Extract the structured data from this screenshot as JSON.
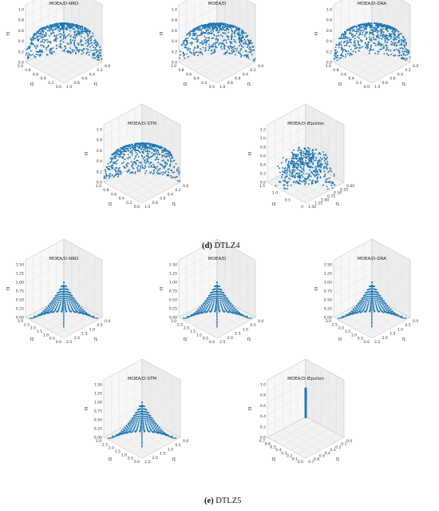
{
  "captions": {
    "d": {
      "letter": "(d)",
      "text": " DTLZ4"
    },
    "e": {
      "letter": "(e)",
      "text": " DTLZ5"
    }
  },
  "colors": {
    "points": "#1f77b4",
    "pane": "#f2f2f2",
    "grid": "#dddddd",
    "edge": "#bbbbbb",
    "ticks": "#333333"
  },
  "chart_data": [
    {
      "type": "scatter",
      "subtype": "3d-scatter",
      "group": "d",
      "problem": "DTLZ4",
      "title": "MOEA/D-NRD",
      "shape": "sphere-octant",
      "point_count": 650,
      "x_ticks": [
        "0.0",
        "0.2",
        "0.4",
        "0.6",
        "0.8",
        "1.0"
      ],
      "y_ticks": [
        "0.0",
        "0.2",
        "0.4",
        "0.6",
        "0.8",
        "1.0"
      ],
      "z_ticks": [
        "0.0",
        "0.2",
        "0.4",
        "0.6",
        "0.8",
        "1.0"
      ],
      "xlabel": "f1",
      "ylabel": "f2",
      "zlabel": "f3",
      "xlim": [
        0,
        1
      ],
      "ylim": [
        0,
        1
      ],
      "zlim": [
        0,
        1.1
      ]
    },
    {
      "type": "scatter",
      "subtype": "3d-scatter",
      "group": "d",
      "problem": "DTLZ4",
      "title": "MOEA/D",
      "shape": "sphere-octant",
      "point_count": 650,
      "x_ticks": [
        "0.0",
        "0.2",
        "0.4",
        "0.6",
        "0.8",
        "1.0"
      ],
      "y_ticks": [
        "0.0",
        "0.2",
        "0.4",
        "0.6",
        "0.8",
        "1.0"
      ],
      "z_ticks": [
        "0.0",
        "0.2",
        "0.4",
        "0.6",
        "0.8",
        "1.0"
      ],
      "xlabel": "f1",
      "ylabel": "f2",
      "zlabel": "f3",
      "xlim": [
        0,
        1
      ],
      "ylim": [
        0,
        1
      ],
      "zlim": [
        0,
        1.1
      ]
    },
    {
      "type": "scatter",
      "subtype": "3d-scatter",
      "group": "d",
      "problem": "DTLZ4",
      "title": "MOEA/D-DRA",
      "shape": "sphere-octant",
      "point_count": 650,
      "x_ticks": [
        "0.0",
        "0.2",
        "0.4",
        "0.6",
        "0.8",
        "1.0"
      ],
      "y_ticks": [
        "0.0",
        "0.2",
        "0.4",
        "0.6",
        "0.8",
        "1.0"
      ],
      "z_ticks": [
        "0.0",
        "0.2",
        "0.4",
        "0.6",
        "0.8",
        "1.0"
      ],
      "xlabel": "f1",
      "ylabel": "f2",
      "zlabel": "f3",
      "xlim": [
        0,
        1
      ],
      "ylim": [
        0,
        1
      ],
      "zlim": [
        0,
        1.1
      ]
    },
    {
      "type": "scatter",
      "subtype": "3d-scatter",
      "group": "d",
      "problem": "DTLZ4",
      "title": "MOEA/D-STM",
      "shape": "sphere-octant",
      "point_count": 650,
      "x_ticks": [
        "0.0",
        "0.2",
        "0.4",
        "0.6",
        "0.8",
        "1.0"
      ],
      "y_ticks": [
        "0.0",
        "0.2",
        "0.4",
        "0.6",
        "0.8",
        "1.0"
      ],
      "z_ticks": [
        "0.0",
        "0.2",
        "0.4",
        "0.6",
        "0.8",
        "1.0"
      ],
      "xlabel": "f1",
      "ylabel": "f2",
      "zlabel": "f3",
      "xlim": [
        0,
        1
      ],
      "ylim": [
        0,
        1
      ],
      "zlim": [
        0,
        1.1
      ]
    },
    {
      "type": "scatter",
      "subtype": "3d-scatter",
      "group": "d",
      "problem": "DTLZ4",
      "title": "MOEA/D-IEpsilon",
      "shape": "noisy-sphere-octant",
      "point_count": 500,
      "x_ticks": [
        "0.00",
        "0.25",
        "0.50",
        "0.75",
        "1.00",
        "1.25",
        "1.50"
      ],
      "y_ticks": [
        "0",
        "0.5",
        "1.0",
        "1.5"
      ],
      "z_ticks": [
        "0.0",
        "0.2",
        "0.4",
        "0.6",
        "0.8",
        "1.0",
        "1.2"
      ],
      "xlabel": "f1",
      "ylabel": "f2",
      "zlabel": "f3",
      "xlim": [
        0,
        1.5
      ],
      "ylim": [
        0,
        1.5
      ],
      "zlim": [
        0,
        1.35
      ]
    },
    {
      "type": "scatter",
      "subtype": "3d-scatter",
      "group": "e",
      "problem": "DTLZ5",
      "title": "MOEA/D-NRD",
      "shape": "fan-curves",
      "point_count": 320,
      "x_ticks": [
        "0.0",
        "0.5",
        "1.0",
        "1.5",
        "2.0",
        "2.5"
      ],
      "y_ticks": [
        "0.0",
        "0.5",
        "1.0",
        "1.5",
        "2.0",
        "2.5",
        "3.0"
      ],
      "z_ticks": [
        "0.00",
        "0.25",
        "0.50",
        "0.75",
        "1.00",
        "1.25",
        "1.50"
      ],
      "xlabel": "f1",
      "ylabel": "f2",
      "zlabel": "f3",
      "xlim": [
        0,
        2.6
      ],
      "ylim": [
        0,
        3.1
      ],
      "zlim": [
        0,
        1.6
      ]
    },
    {
      "type": "scatter",
      "subtype": "3d-scatter",
      "group": "e",
      "problem": "DTLZ5",
      "title": "MOEA/D",
      "shape": "fan-curves",
      "point_count": 320,
      "x_ticks": [
        "0.0",
        "0.5",
        "1.0",
        "1.5",
        "2.0",
        "2.5"
      ],
      "y_ticks": [
        "0.0",
        "0.5",
        "1.0",
        "1.5",
        "2.0",
        "2.5",
        "3.0"
      ],
      "z_ticks": [
        "0.00",
        "0.25",
        "0.50",
        "0.75",
        "1.00",
        "1.25",
        "1.50"
      ],
      "xlabel": "f1",
      "ylabel": "f2",
      "zlabel": "f3",
      "xlim": [
        0,
        2.6
      ],
      "ylim": [
        0,
        3.1
      ],
      "zlim": [
        0,
        1.6
      ]
    },
    {
      "type": "scatter",
      "subtype": "3d-scatter",
      "group": "e",
      "problem": "DTLZ5",
      "title": "MOEA/D-DRA",
      "shape": "fan-curves",
      "point_count": 320,
      "x_ticks": [
        "0.0",
        "0.5",
        "1.0",
        "1.5",
        "2.0",
        "2.5"
      ],
      "y_ticks": [
        "0.0",
        "0.5",
        "1.0",
        "1.5",
        "2.0",
        "2.5",
        "3.0"
      ],
      "z_ticks": [
        "0.00",
        "0.25",
        "0.50",
        "0.75",
        "1.00",
        "1.25",
        "1.50"
      ],
      "xlabel": "f1",
      "ylabel": "f2",
      "zlabel": "f3",
      "xlim": [
        0,
        2.6
      ],
      "ylim": [
        0,
        3.1
      ],
      "zlim": [
        0,
        1.6
      ]
    },
    {
      "type": "scatter",
      "subtype": "3d-scatter",
      "group": "e",
      "problem": "DTLZ5",
      "title": "MOEA/D-STM",
      "shape": "fan-curves",
      "point_count": 320,
      "x_ticks": [
        "0.0",
        "0.5",
        "1.0",
        "1.5",
        "2.0",
        "2.5"
      ],
      "y_ticks": [
        "0.0",
        "0.5",
        "1.0",
        "1.5",
        "2.0",
        "2.5",
        "3.0"
      ],
      "z_ticks": [
        "0.00",
        "0.25",
        "0.50",
        "0.75",
        "1.00",
        "1.25",
        "1.50"
      ],
      "xlabel": "f1",
      "ylabel": "f2",
      "zlabel": "f3",
      "xlim": [
        0,
        2.6
      ],
      "ylim": [
        0,
        3.1
      ],
      "zlim": [
        0,
        1.6
      ]
    },
    {
      "type": "scatter",
      "subtype": "3d-scatter",
      "group": "e",
      "problem": "DTLZ5",
      "title": "MOEA/D-IEpsilon",
      "shape": "degenerate-arc",
      "point_count": 200,
      "x_ticks": [
        "0.0",
        "0.1",
        "0.2",
        "0.3",
        "0.4",
        "0.5",
        "0.6",
        "0.7"
      ],
      "y_ticks": [
        "0.0",
        "0.1",
        "0.2",
        "0.3",
        "0.4",
        "0.5",
        "0.6",
        "0.7"
      ],
      "z_ticks": [
        "0.0",
        "0.2",
        "0.4",
        "0.6",
        "0.8",
        "1.0"
      ],
      "xlabel": "f1",
      "ylabel": "f2",
      "zlabel": "f3",
      "xlim": [
        0,
        0.72
      ],
      "ylim": [
        0,
        0.72
      ],
      "zlim": [
        0,
        1.02
      ]
    }
  ]
}
